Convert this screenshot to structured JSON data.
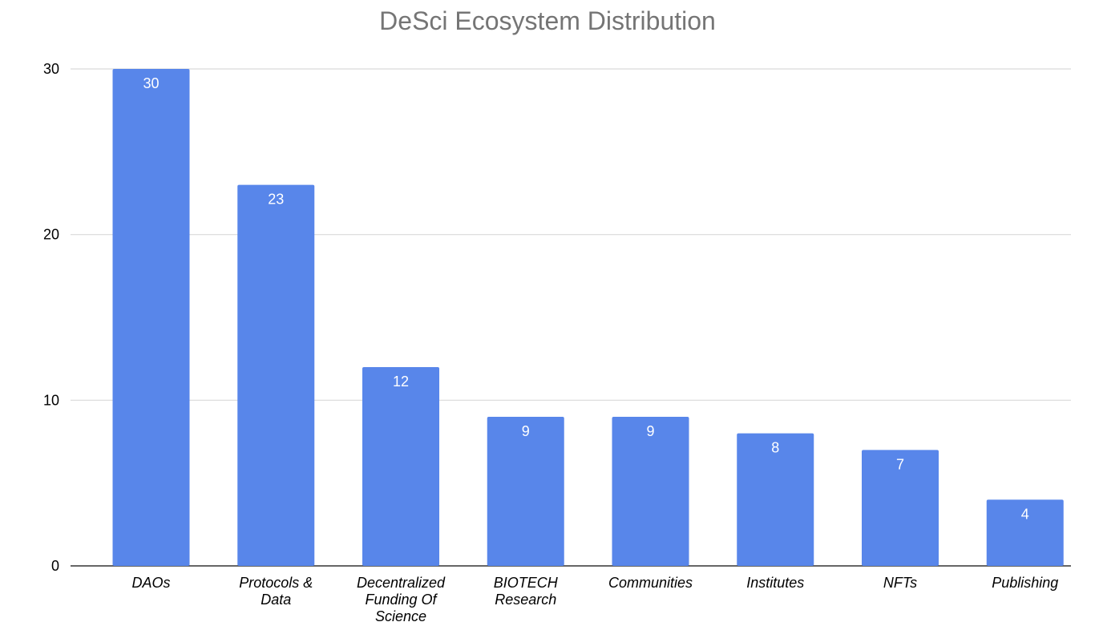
{
  "chart_data": {
    "type": "bar",
    "title": "DeSci Ecosystem Distribution",
    "xlabel": "",
    "ylabel": "",
    "categories": [
      "DAOs",
      "Protocols & Data",
      "Decentralized Funding Of Science",
      "BIOTECH Research",
      "Communities",
      "Institutes",
      "NFTs",
      "Publishing"
    ],
    "category_lines": [
      [
        "DAOs"
      ],
      [
        "Protocols &",
        "Data"
      ],
      [
        "Decentralized",
        "Funding Of",
        "Science"
      ],
      [
        "BIOTECH",
        "Research"
      ],
      [
        "Communities"
      ],
      [
        "Institutes"
      ],
      [
        "NFTs"
      ],
      [
        "Publishing"
      ]
    ],
    "values": [
      30,
      23,
      12,
      9,
      9,
      8,
      7,
      4
    ],
    "data_labels": [
      "30",
      "23",
      "12",
      "9",
      "9",
      "8",
      "7",
      "4"
    ],
    "ylim": [
      0,
      30
    ],
    "yticks": [
      0,
      10,
      20,
      30
    ],
    "ytick_labels": [
      "0",
      "10",
      "20",
      "30"
    ],
    "grid": true,
    "legend": "none",
    "colors": {
      "bar": "#5886EA",
      "grid": "#d9d9d9",
      "axis": "#333333",
      "title": "#757575"
    }
  }
}
